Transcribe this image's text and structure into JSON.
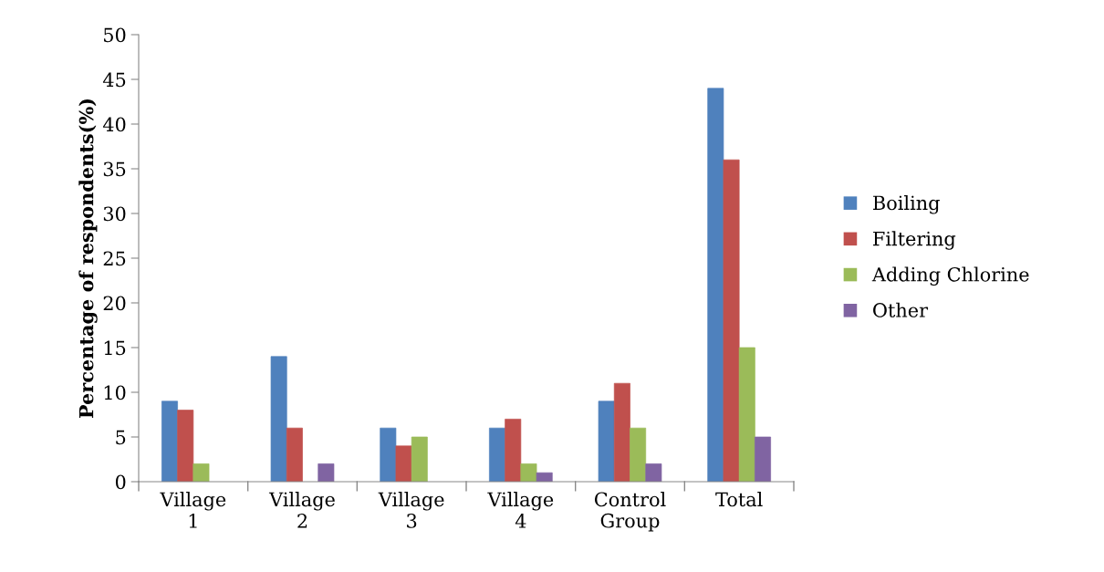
{
  "chart_data": {
    "type": "bar",
    "ylabel": "Percentage of respondents(%)",
    "categories": [
      "Village 1",
      "Village 2",
      "Village 3",
      "Village 4",
      "Control Group",
      "Total"
    ],
    "series": [
      {
        "name": "Boiling",
        "color": "#4f81bd",
        "values": [
          9,
          14,
          6,
          6,
          9,
          44
        ]
      },
      {
        "name": "Filtering",
        "color": "#c0504d",
        "values": [
          8,
          6,
          4,
          7,
          11,
          36
        ]
      },
      {
        "name": "Adding Chlorine",
        "color": "#9bbb59",
        "values": [
          2,
          null,
          5,
          2,
          6,
          15
        ]
      },
      {
        "name": "Other",
        "color": "#8064a2",
        "values": [
          null,
          2,
          null,
          1,
          2,
          5
        ]
      }
    ],
    "ylim": [
      0,
      50
    ],
    "yticks": [
      0,
      5,
      10,
      15,
      20,
      25,
      30,
      35,
      40,
      45,
      50
    ],
    "grid": false,
    "legend": "right"
  }
}
